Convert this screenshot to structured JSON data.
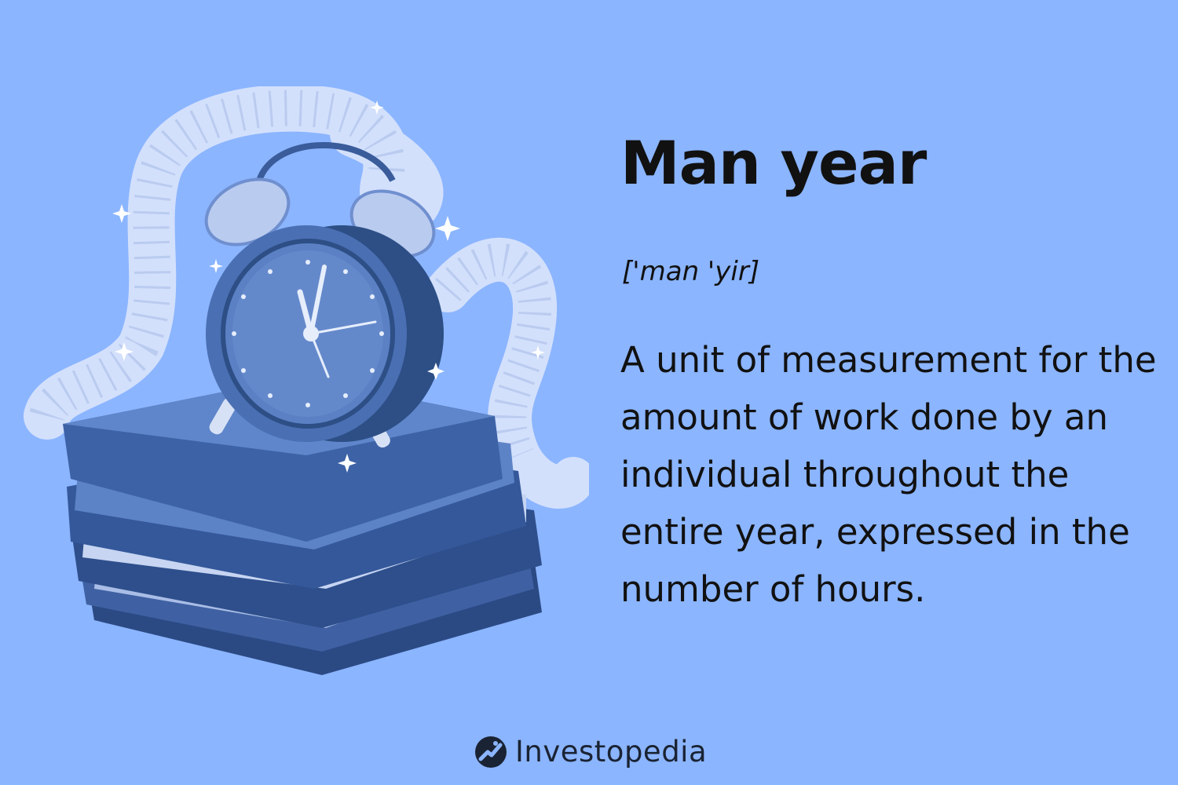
{
  "term": "Man year",
  "pronunciation": "['man 'yir]",
  "definition": "A unit of measurement for the amount of work done by an individual throughout the entire year, expressed in the number of hours.",
  "brand": {
    "name": "Investopedia",
    "logo_icon": "investopedia-logo-icon"
  },
  "illustration": {
    "icon": "alarm-clock-on-document-stack-icon"
  },
  "colors": {
    "background": "#8bb5ff",
    "text": "#111111",
    "brand_text": "#1a2333",
    "clock_dark": "#2d4f86",
    "clock_mid": "#4a6fb3",
    "folder_dark": "#2e4f8c",
    "folder_light": "#5d83c7",
    "paper": "#e4ecfb"
  }
}
